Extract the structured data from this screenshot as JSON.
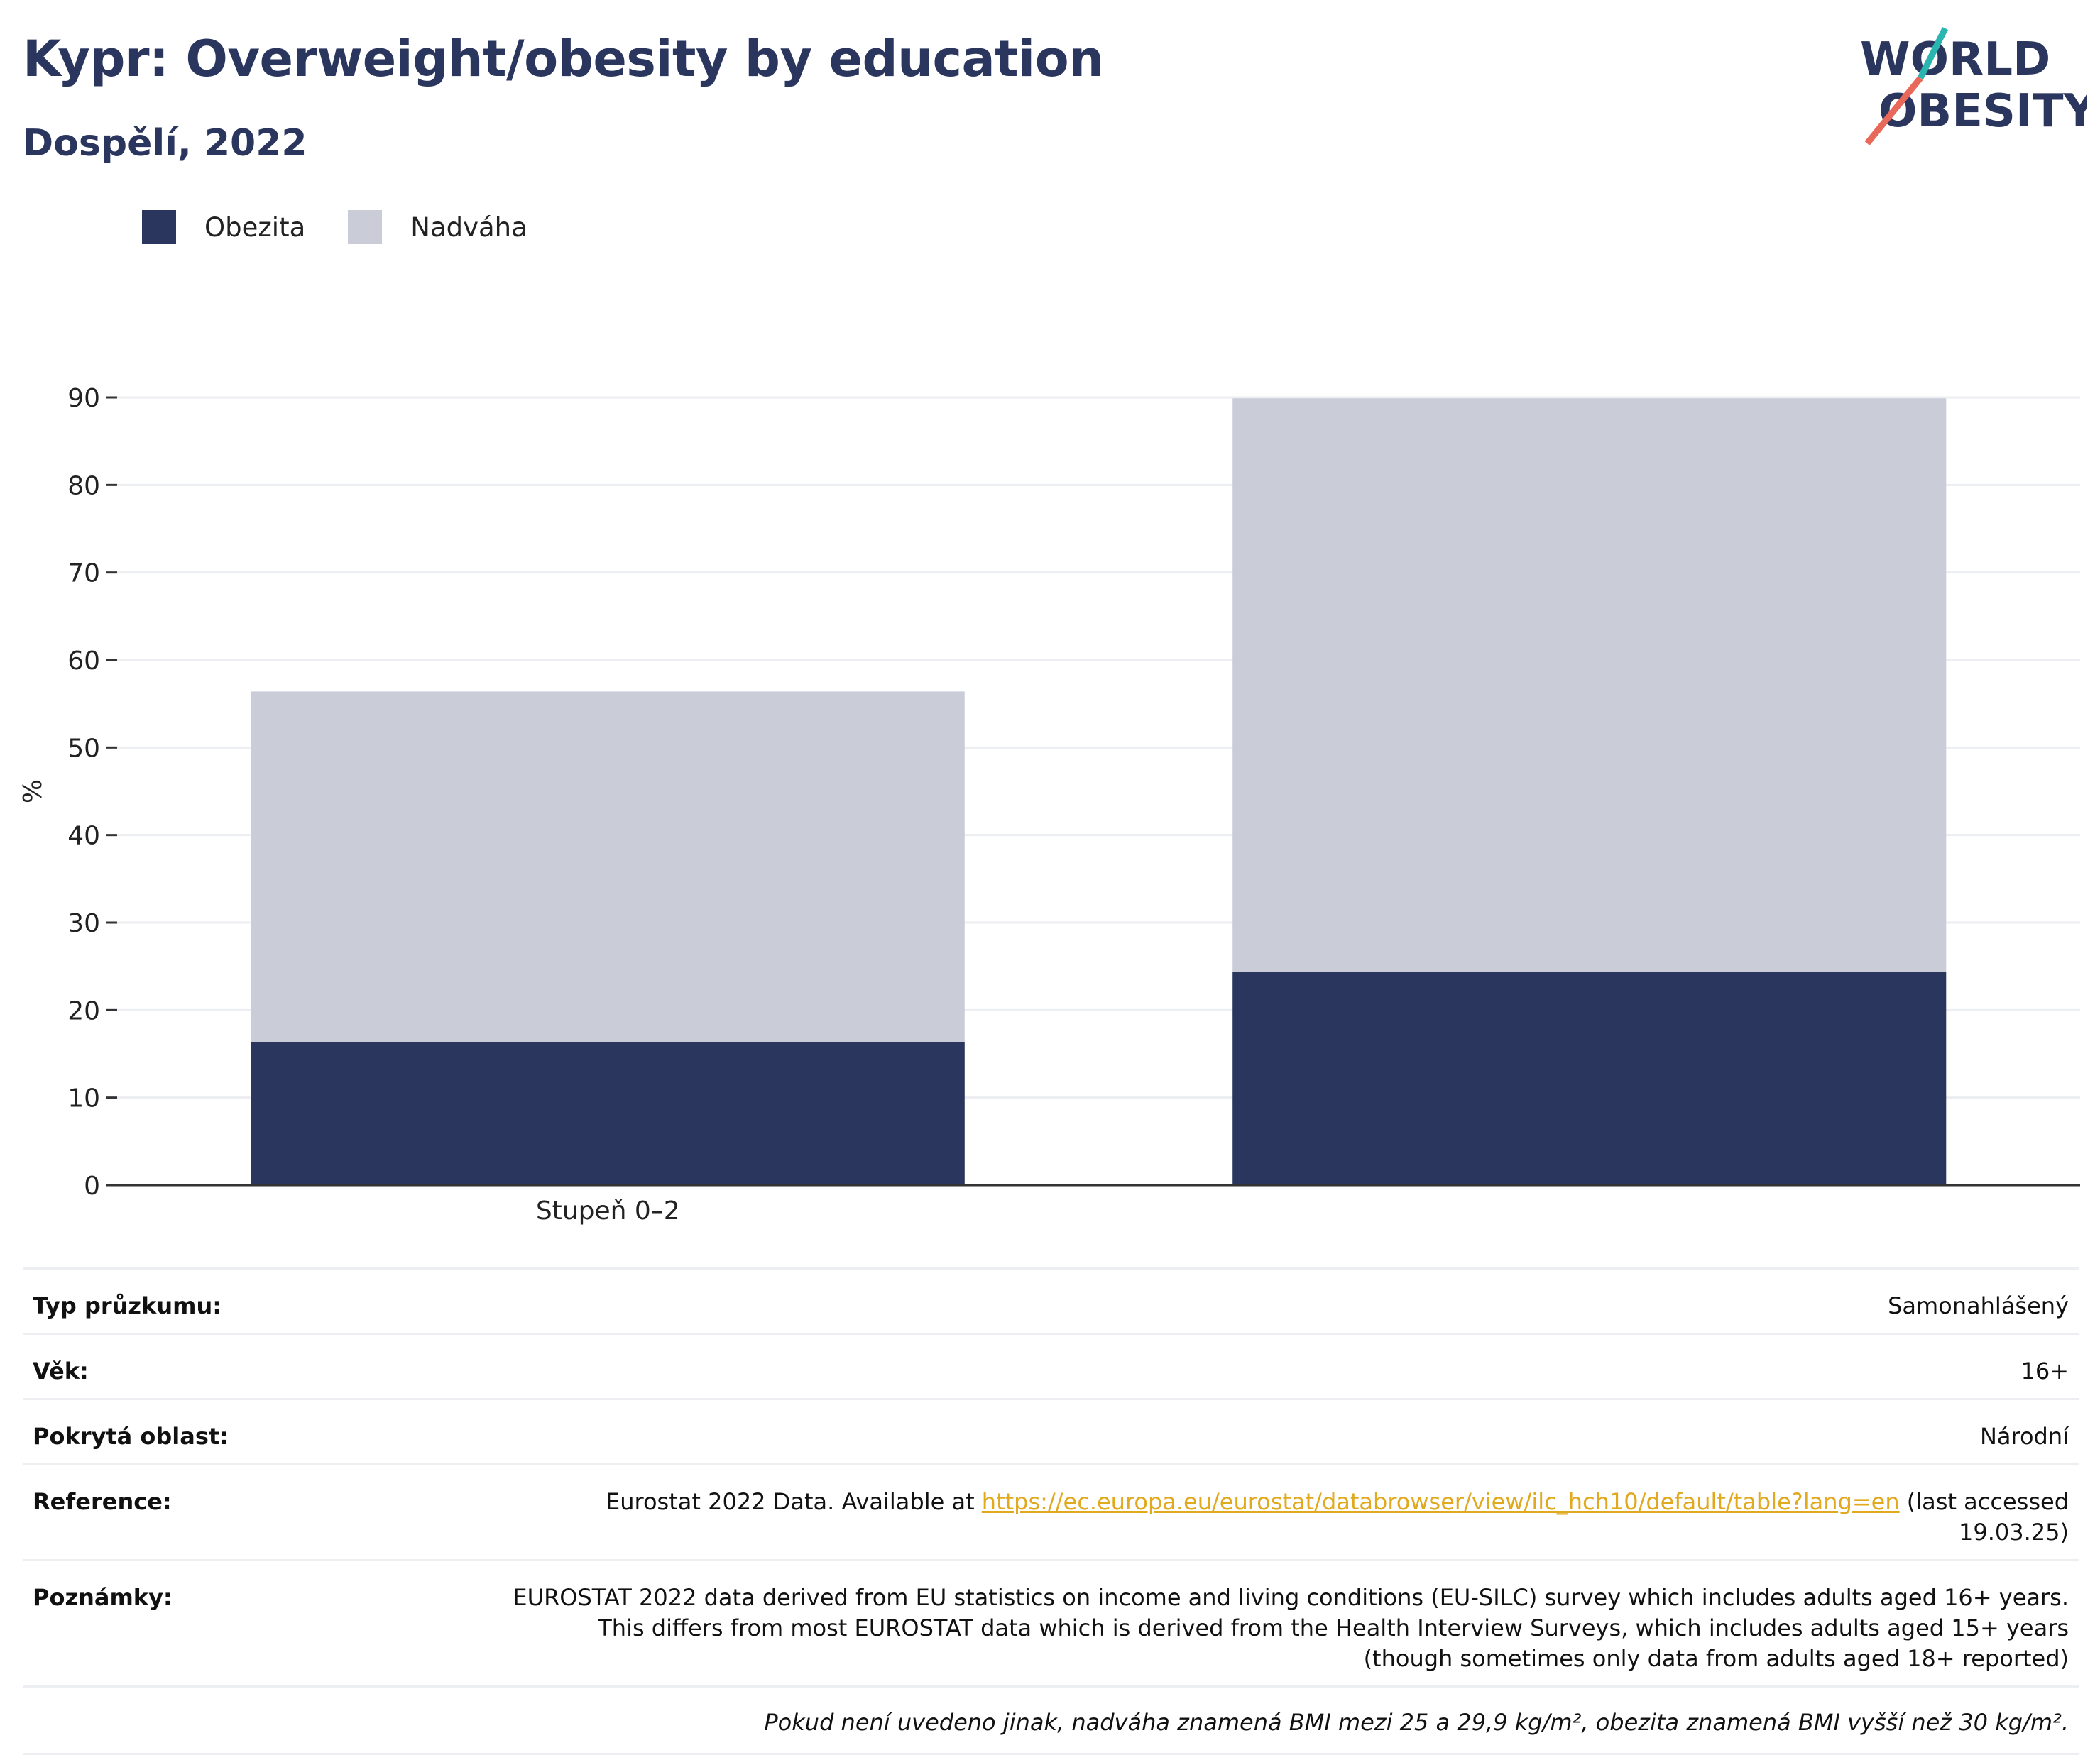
{
  "header": {
    "title": "Kypr: Overweight/obesity by education",
    "subtitle": "Dospělí, 2022"
  },
  "logo": {
    "line1": "WORLD",
    "line2": "OBESITY"
  },
  "legend": {
    "items": [
      {
        "label": "Obezita",
        "color": "#2b365f"
      },
      {
        "label": "Nadváha",
        "color": "#cacdd8"
      }
    ]
  },
  "chart_data": {
    "type": "bar",
    "stacked": true,
    "categories": [
      "Stupeň 0–2",
      ""
    ],
    "series": [
      {
        "name": "Obezita",
        "color": "#2b365f",
        "values": [
          16.3,
          24.4
        ]
      },
      {
        "name": "Nadváha",
        "color": "#cacdd8",
        "values": [
          40.1,
          65.5
        ]
      }
    ],
    "xlabel": "",
    "ylabel": "%",
    "ylim": [
      0,
      90
    ],
    "yticks": [
      "0",
      "10",
      "20",
      "30",
      "40",
      "50",
      "60",
      "70",
      "80",
      "90"
    ],
    "grid": true
  },
  "info": {
    "rows": [
      {
        "label": "Typ průzkumu:",
        "value": "Samonahlášený"
      },
      {
        "label": "Věk:",
        "value": "16+"
      },
      {
        "label": "Pokrytá oblast:",
        "value": "Národní"
      }
    ],
    "reference": {
      "label": "Reference:",
      "prefix": "Eurostat 2022 Data. Available at ",
      "link": "https://ec.europa.eu/eurostat/databrowser/view/ilc_hch10/default/table?lang=en",
      "suffix": " (last accessed 19.03.25)"
    },
    "notes": {
      "label": "Poznámky:",
      "value": "EUROSTAT 2022 data derived from EU statistics on income and living conditions (EU-SILC) survey which includes adults aged 16+ years. This differs from most EUROSTAT data which is derived from the Health Interview Surveys, which includes adults aged 15+ years (though sometimes only data from adults aged 18+ reported)"
    },
    "footnote": "Pokud není uvedeno jinak, nadváha znamená BMI mezi 25 a 29,9 kg/m², obezita znamená BMI vyšší než 30 kg/m²."
  }
}
